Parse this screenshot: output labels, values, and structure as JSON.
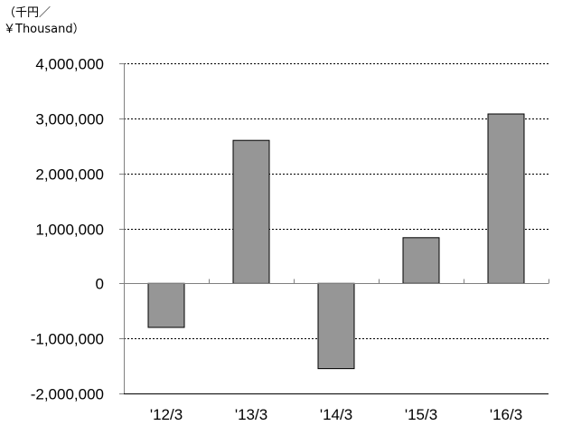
{
  "unit_label_line1": "（千円／",
  "unit_label_line2": "￥Thousand）",
  "colors": {
    "bar_fill": "#969696",
    "bar_stroke": "#000000",
    "grid": "#000000",
    "axis": "#808080",
    "background": "#ffffff"
  },
  "chart_data": {
    "type": "bar",
    "categories": [
      "'12/3",
      "'13/3",
      "'14/3",
      "'15/3",
      "'16/3"
    ],
    "values": [
      -800000,
      2600000,
      -1550000,
      830000,
      3080000
    ],
    "ylim": [
      -2000000,
      4000000
    ],
    "yticks": [
      4000000,
      3000000,
      2000000,
      1000000,
      0,
      -1000000,
      -2000000
    ],
    "ytick_labels": [
      "4,000,000",
      "3,000,000",
      "2,000,000",
      "1,000,000",
      "0",
      "-1,000,000",
      "-2,000,000"
    ],
    "grid": true,
    "grid_style": "dotted-horizontal",
    "legend": "none"
  }
}
